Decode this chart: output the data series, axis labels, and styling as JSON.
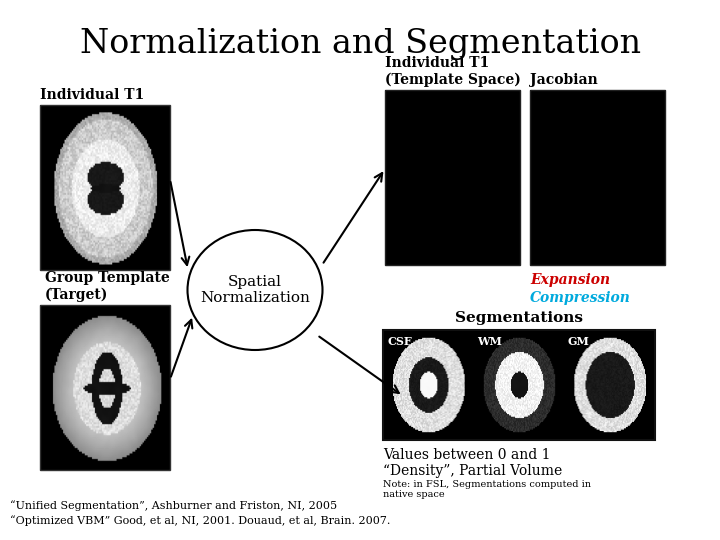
{
  "title": "Normalization and Segmentation",
  "title_fontsize": 24,
  "background_color": "#ffffff",
  "labels": {
    "individual_t1": "Individual T1",
    "individual_t1_template": "Individual T1\n(Template Space)",
    "jacobian": "Jacobian",
    "group_template": "Group Template\n(Target)",
    "spatial_norm": "Spatial\nNormalization",
    "expansion": "Expansion",
    "compression": "Compression",
    "segmentations": "Segmentations",
    "values_line1": "Values between 0 and 1",
    "values_line2": "“Density”, Partial Volume",
    "note": "Note: in FSL, Segmentations computed in\nnative space",
    "ref1": "“Unified Segmentation”, Ashburner and Friston, NI, 2005",
    "ref2": "“Optimized VBM” Good, et al, NI, 2001. Douaud, et al, Brain. 2007.",
    "csf": "CSF",
    "wm": "WM",
    "gm": "GM"
  },
  "colors": {
    "expansion": "#cc0000",
    "compression": "#00aadd",
    "text": "#000000",
    "ellipse_fill": "#ffffff",
    "ellipse_edge": "#000000"
  }
}
